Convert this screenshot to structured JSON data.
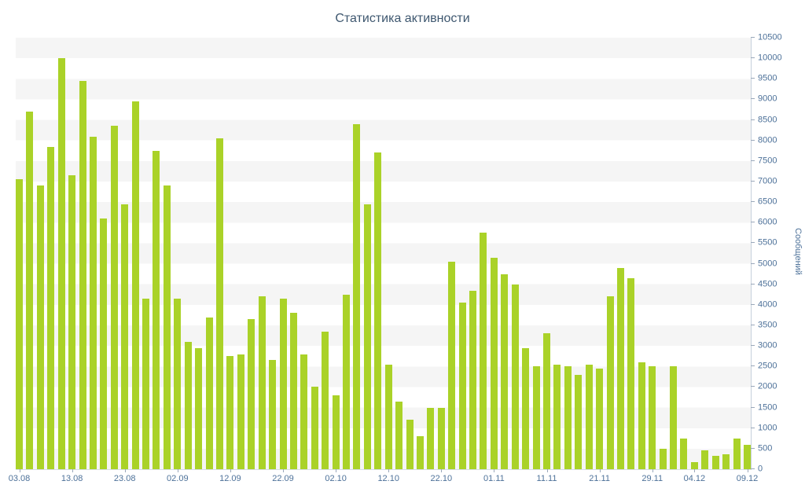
{
  "chart_data": {
    "type": "bar",
    "title": "Статистика активности",
    "ylabel": "Сообщений",
    "xlabel": "",
    "ylim": [
      0,
      10500
    ],
    "y_tick_step": 500,
    "grid": "alternating-horizontal-bands",
    "legend": "none",
    "colors": {
      "bar": "#aad228",
      "title": "#3e576f",
      "axis_labels": "#4d7199",
      "band": "#f5f5f5",
      "axis_line": "#c6d0dc"
    },
    "y_ticks": [
      0,
      500,
      1000,
      1500,
      2000,
      2500,
      3000,
      3500,
      4000,
      4500,
      5000,
      5500,
      6000,
      6500,
      7000,
      7500,
      8000,
      8500,
      9000,
      9500,
      10000,
      10500
    ],
    "x_ticks": [
      {
        "index": 0,
        "label": "03.08"
      },
      {
        "index": 5,
        "label": "13.08"
      },
      {
        "index": 10,
        "label": "23.08"
      },
      {
        "index": 15,
        "label": "02.09"
      },
      {
        "index": 20,
        "label": "12.09"
      },
      {
        "index": 25,
        "label": "22.09"
      },
      {
        "index": 30,
        "label": "02.10"
      },
      {
        "index": 35,
        "label": "12.10"
      },
      {
        "index": 40,
        "label": "22.10"
      },
      {
        "index": 45,
        "label": "01.11"
      },
      {
        "index": 50,
        "label": "11.11"
      },
      {
        "index": 55,
        "label": "21.11"
      },
      {
        "index": 60,
        "label": "29.11"
      },
      {
        "index": 64,
        "label": "04.12"
      },
      {
        "index": 69,
        "label": "09.12"
      }
    ],
    "values": [
      7050,
      8700,
      6900,
      7850,
      10000,
      7150,
      9450,
      8100,
      6100,
      8350,
      6450,
      8950,
      4150,
      7750,
      6900,
      4150,
      3100,
      2950,
      3700,
      8050,
      2750,
      2800,
      3650,
      4200,
      2650,
      4150,
      3800,
      2800,
      2000,
      3350,
      1800,
      4250,
      8400,
      6450,
      7700,
      2550,
      1650,
      1200,
      800,
      1500,
      1500,
      5050,
      4050,
      4350,
      5750,
      5150,
      4750,
      4500,
      2950,
      2500,
      3300,
      2550,
      2500,
      2300,
      2550,
      2450,
      4200,
      4900,
      4650,
      2600,
      2500,
      500,
      2500,
      750,
      180,
      450,
      330,
      360,
      750,
      600
    ]
  }
}
